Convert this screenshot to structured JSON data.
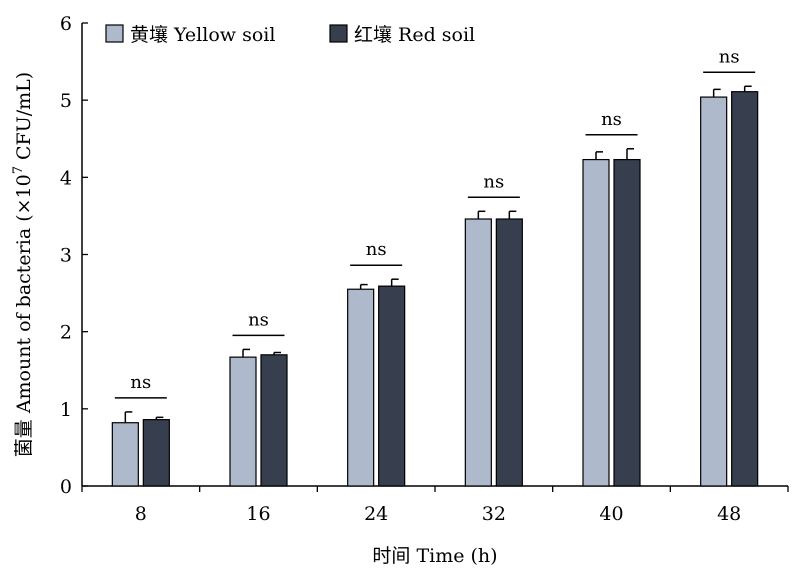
{
  "chart_data": {
    "type": "bar",
    "title": "",
    "xlabel": "时间 Time (h)",
    "ylabel": "菌量 Amount of bacteria (×10",
    "ylabel_superscript": "7",
    "ylabel_unit": " CFU/mL)",
    "categories": [
      "8",
      "16",
      "24",
      "32",
      "40",
      "48"
    ],
    "ylim": [
      0,
      6
    ],
    "yticks": [
      "0",
      "1",
      "2",
      "3",
      "4",
      "5",
      "6"
    ],
    "grid": false,
    "legend_position": "top-left",
    "series": [
      {
        "name": "黄壤 Yellow soil",
        "color": "#aeb9cc",
        "values": [
          0.82,
          1.67,
          2.55,
          3.46,
          4.23,
          5.04
        ],
        "errors": [
          0.14,
          0.1,
          0.06,
          0.1,
          0.1,
          0.1
        ]
      },
      {
        "name": "红壤 Red soil",
        "color": "#373f4f",
        "values": [
          0.86,
          1.7,
          2.59,
          3.46,
          4.23,
          5.11
        ],
        "errors": [
          0.03,
          0.03,
          0.09,
          0.1,
          0.14,
          0.07
        ]
      }
    ],
    "annotations": [
      "ns",
      "ns",
      "ns",
      "ns",
      "ns",
      "ns"
    ]
  }
}
